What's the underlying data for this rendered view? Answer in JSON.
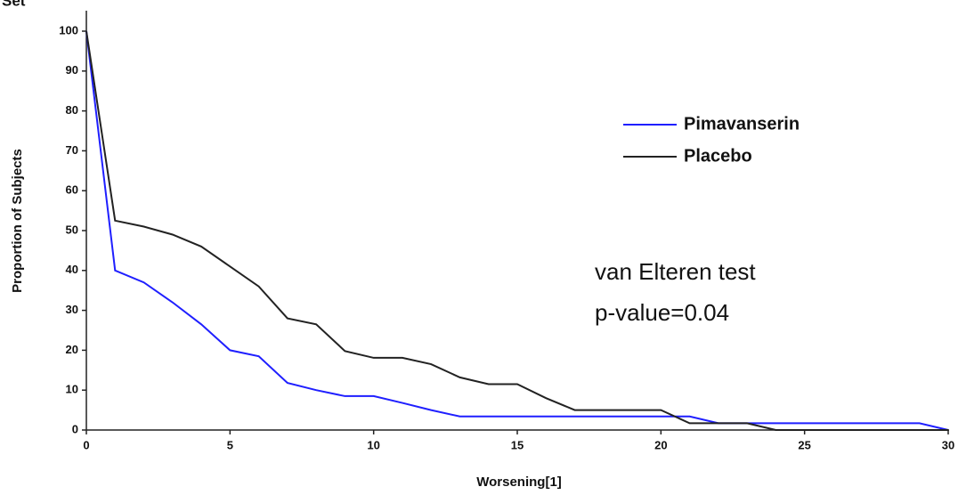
{
  "chart_data": {
    "type": "line",
    "title": "Set",
    "x_label": "Worsening[1]",
    "y_label": "Proportion of Subjects",
    "x": [
      0,
      1,
      2,
      3,
      4,
      5,
      6,
      7,
      8,
      9,
      10,
      11,
      12,
      13,
      14,
      15,
      16,
      17,
      18,
      19,
      20,
      21,
      22,
      23,
      24,
      25,
      26,
      27,
      28,
      29,
      30
    ],
    "series": [
      {
        "name": "Pimavanserin",
        "color": "#1f1fff",
        "values": [
          100,
          40,
          37,
          32,
          26.5,
          20,
          18.5,
          11.8,
          10,
          8.5,
          8.5,
          6.8,
          5,
          3.4,
          3.4,
          3.4,
          3.4,
          3.4,
          3.4,
          3.4,
          3.4,
          3.4,
          1.7,
          1.7,
          1.7,
          1.7,
          1.7,
          1.7,
          1.7,
          1.7,
          0
        ]
      },
      {
        "name": "Placebo",
        "color": "#222222",
        "values": [
          100,
          52.5,
          51,
          49,
          46,
          41,
          36,
          28,
          26.5,
          19.8,
          18.1,
          18.1,
          16.5,
          13.2,
          11.5,
          11.5,
          8,
          5,
          5,
          5,
          5,
          1.7,
          1.7,
          1.7,
          0,
          0,
          0,
          0,
          0,
          0,
          0
        ]
      }
    ],
    "annotations": [
      "van Elteren test",
      "p-value=0.04"
    ],
    "xlim": [
      0,
      30
    ],
    "ylim": [
      0,
      100
    ],
    "xticks": [
      0,
      5,
      10,
      15,
      20,
      25,
      30
    ],
    "yticks": [
      0,
      10,
      20,
      30,
      40,
      50,
      60,
      70,
      80,
      90,
      100
    ],
    "grid": false,
    "legend": "upper right"
  }
}
